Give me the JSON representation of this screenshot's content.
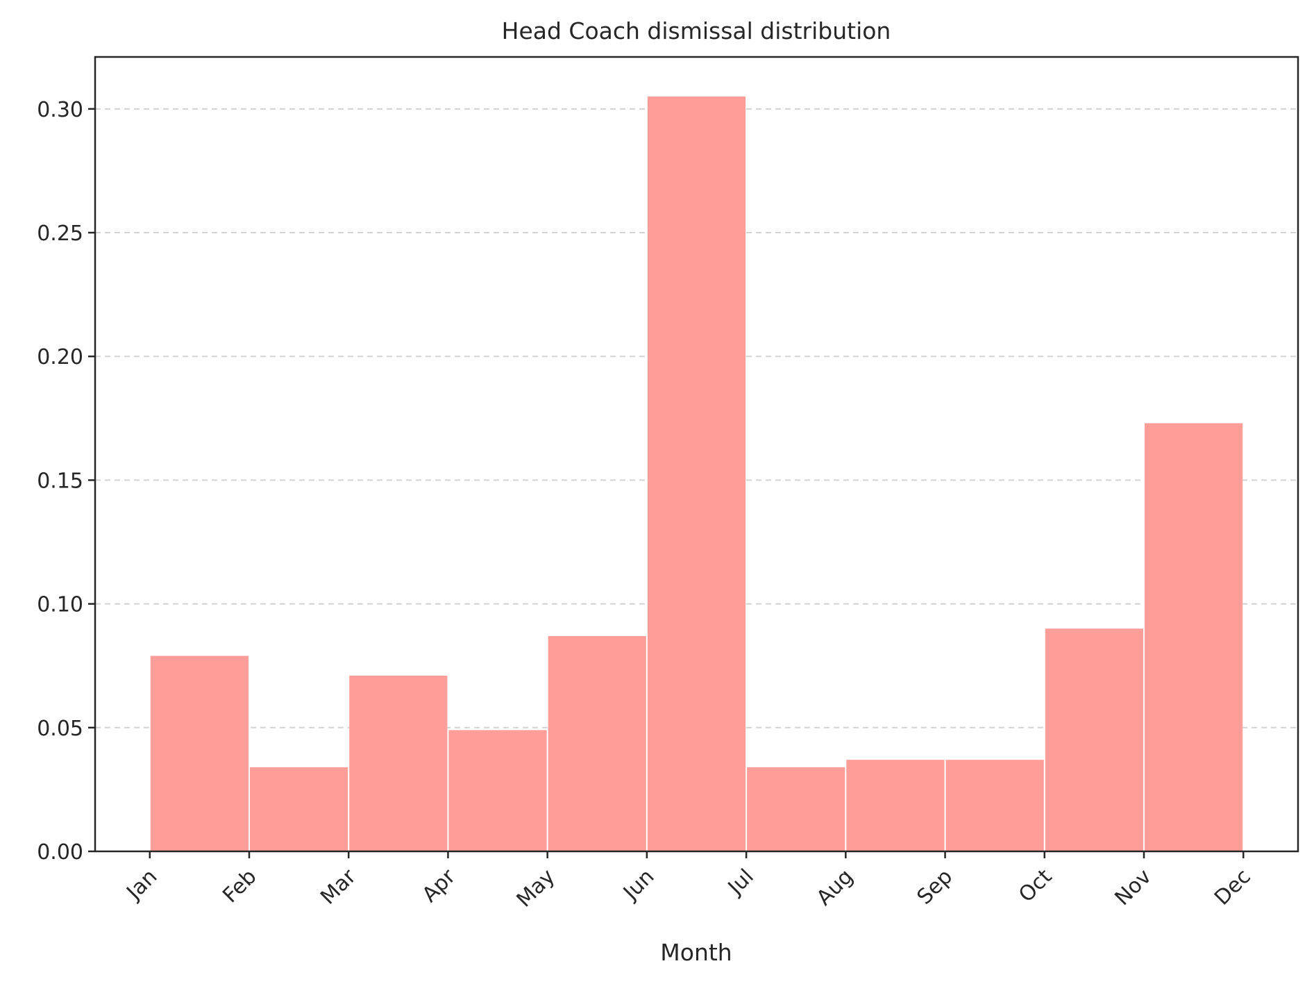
{
  "chart_data": {
    "type": "bar",
    "title": "Head Coach dismissal distribution",
    "xlabel": "Month",
    "ylabel": "",
    "tick_labels": [
      "Jan",
      "Feb",
      "Mar",
      "Apr",
      "May",
      "Jun",
      "Jul",
      "Aug",
      "Sep",
      "Oct",
      "Nov",
      "Dec"
    ],
    "bin_edges": [
      1,
      2,
      3,
      4,
      5,
      6,
      7,
      8,
      9,
      10,
      11,
      12
    ],
    "values": [
      0.079,
      0.034,
      0.071,
      0.049,
      0.087,
      0.305,
      0.034,
      0.037,
      0.037,
      0.09,
      0.173
    ],
    "yticks": [
      "0.00",
      "0.05",
      "0.10",
      "0.15",
      "0.20",
      "0.25",
      "0.30"
    ],
    "ytick_values": [
      0,
      0.05,
      0.1,
      0.15,
      0.2,
      0.25,
      0.3
    ],
    "ylim": [
      0,
      0.321
    ],
    "xlim": [
      0.45,
      12.55
    ],
    "grid": "y-dashed",
    "bar_color": "#ff9e99",
    "grid_color": "#d3d3d3",
    "axis_color": "#262626"
  }
}
